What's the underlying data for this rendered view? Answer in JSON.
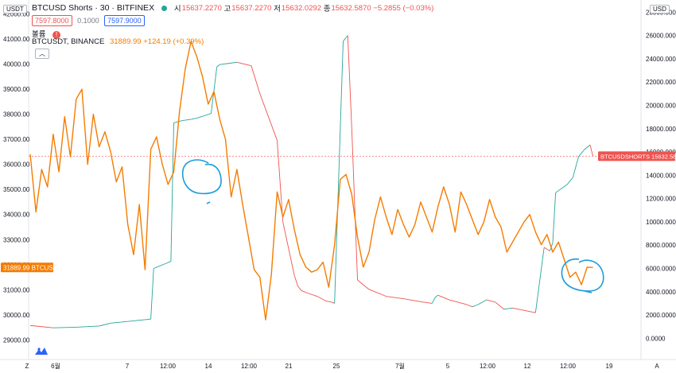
{
  "header": {
    "symbol": "BTCUSD Shorts",
    "interval": "30",
    "exchange": "BITFINEX",
    "open_label": "시",
    "open": "15637.2270",
    "high_label": "고",
    "high": "15637.2270",
    "low_label": "저",
    "low": "15632.0292",
    "close_label": "종",
    "close": "15632.5870",
    "change": "−5.2855 (−0.03%)",
    "bid": "7597.8000",
    "spread": "0.1000",
    "ask": "7597.9000"
  },
  "legend": {
    "volume_label": "볼륨",
    "warn_icon": "!",
    "overlay_name": "BTCUSDT, BINANCE",
    "overlay_value": "31889.99 +124.19 (+0.39%)",
    "collapse_icon": "chevron-up-icon"
  },
  "currency_left": "USDT",
  "currency_right": "USD",
  "colors": {
    "overlay": "#f57c00",
    "shorts_up": "#26a69a",
    "shorts_down": "#ef5350",
    "annotation": "#1e9bd7",
    "axis_text": "#131722",
    "label_bg_left": "#f57c00",
    "label_bg_right": "#ef5350"
  },
  "chart_data": {
    "type": "line",
    "title": "BTCUSD Shorts, 30, BITFINEX",
    "x_tick_labels": [
      "Z",
      "6월",
      "7",
      "12:00",
      "14",
      "12:00",
      "21",
      "25",
      "7월",
      "5",
      "12:00",
      "12",
      "12:00",
      "19",
      "A"
    ],
    "left_axis": {
      "unit": "USDT",
      "ticks": [
        29000,
        30000,
        31000,
        32000,
        33000,
        34000,
        35000,
        36000,
        37000,
        38000,
        39000,
        40000,
        41000,
        42000
      ],
      "tick_labels": [
        "29000.00",
        "30000.00",
        "31000.00",
        "32000.00",
        "33000.00",
        "34000.00",
        "35000.00",
        "36000.00",
        "37000.00",
        "38000.00",
        "39000.00",
        "40000.00",
        "41000.00",
        "42000.00"
      ],
      "range": [
        28600,
        42300
      ],
      "last_label": "31889.99",
      "last_value": 31889.99,
      "last_name": "BTCUSDT"
    },
    "right_axis": {
      "unit": "USD",
      "ticks": [
        0,
        2000,
        4000,
        6000,
        8000,
        10000,
        12000,
        14000,
        16000,
        18000,
        20000,
        22000,
        24000,
        26000,
        28000
      ],
      "tick_labels": [
        "0.0000",
        "2000.0000",
        "4000.0000",
        "6000.0000",
        "8000.0000",
        "10000.0000",
        "12000.0000",
        "14000.0000",
        "16000.0000",
        "18000.0000",
        "20000.0000",
        "22000.0000",
        "24000.0000",
        "26000.0000",
        "28000.0000"
      ],
      "range": [
        -1000,
        28500
      ],
      "last_label": "15632.5870",
      "last_value": 15632.587,
      "last_name": "BTCUSDSHORTS"
    },
    "series": [
      {
        "name": "BTCUSD Shorts",
        "axis": "right",
        "x": [
          0,
          4,
          8,
          12,
          14,
          18,
          21,
          21.5,
          22.5,
          23.5,
          24.5,
          25,
          26.5,
          28,
          29,
          31.5,
          32.5,
          33,
          34.5,
          36,
          38.5,
          40,
          43,
          44,
          46,
          46.6,
          47.2,
          48.2,
          50,
          51.5,
          52.5,
          53,
          53.8,
          54.5,
          55.3,
          56,
          57,
          59,
          62,
          65,
          68.5,
          70,
          70.5,
          71,
          73,
          76,
          77,
          78,
          79.5,
          81,
          82.5,
          84,
          87,
          88,
          89.5,
          90.5,
          91,
          91.5,
          93.5,
          94.5,
          95.5,
          96.5,
          97.5,
          98
        ],
        "values": [
          1100,
          900,
          950,
          1050,
          1300,
          1500,
          1650,
          6000,
          6200,
          6400,
          6600,
          18500,
          18700,
          18800,
          18900,
          19300,
          23300,
          23500,
          23600,
          23700,
          23400,
          21000,
          17000,
          10000,
          5400,
          4500,
          4100,
          3900,
          3600,
          3200,
          3100,
          3000,
          15000,
          25500,
          26000,
          18000,
          5000,
          4200,
          3600,
          3400,
          3100,
          3000,
          3500,
          3700,
          3300,
          2900,
          2700,
          2900,
          3300,
          3100,
          2500,
          2600,
          2300,
          2200,
          7800,
          7500,
          8200,
          12500,
          13200,
          13800,
          15600,
          16200,
          16600,
          15650
        ]
      },
      {
        "name": "BTCUSDT, BINANCE",
        "axis": "left",
        "x": [
          0,
          1,
          2,
          3,
          4,
          5,
          6,
          7,
          8,
          9,
          10,
          11,
          12,
          13,
          14,
          15,
          16,
          17,
          18,
          19,
          20,
          21,
          22,
          23,
          24,
          25,
          26,
          27,
          28,
          29,
          30,
          31,
          32,
          33,
          34,
          35,
          36,
          37,
          38,
          39,
          40,
          41,
          42,
          43,
          44,
          45,
          46,
          47,
          48,
          49,
          50,
          51,
          52,
          53,
          54,
          55,
          56,
          57,
          58,
          59,
          60,
          61,
          62,
          63,
          64,
          65,
          66,
          67,
          68,
          69,
          70,
          71,
          72,
          73,
          74,
          75,
          76,
          77,
          78,
          79,
          80,
          81,
          82,
          83,
          84,
          85,
          86,
          87,
          88,
          89,
          90,
          91,
          92,
          93,
          94,
          95,
          96,
          97,
          98
        ],
        "values": [
          36400,
          34100,
          35800,
          35100,
          37200,
          35700,
          37900,
          36300,
          38600,
          39000,
          36000,
          38000,
          36700,
          37300,
          36500,
          35300,
          35900,
          33600,
          32400,
          34400,
          31800,
          36600,
          37100,
          36000,
          35200,
          35700,
          38100,
          39800,
          40900,
          40300,
          39500,
          38400,
          38900,
          37800,
          37000,
          34700,
          35800,
          34400,
          33100,
          31800,
          31500,
          29800,
          31600,
          34900,
          33900,
          34600,
          33400,
          32400,
          31900,
          31700,
          31800,
          32100,
          31100,
          32800,
          35400,
          35600,
          34800,
          33100,
          31900,
          32500,
          33800,
          34700,
          33900,
          33200,
          34200,
          33600,
          33100,
          33600,
          34500,
          33900,
          33300,
          34300,
          35100,
          34400,
          33300,
          34900,
          34400,
          33800,
          33200,
          33700,
          34600,
          33900,
          33500,
          32500,
          32900,
          33300,
          33700,
          34000,
          33300,
          32800,
          33200,
          32500,
          32900,
          32200,
          31500,
          31700,
          31200,
          31900,
          31890
        ]
      }
    ],
    "annotations": [
      "circle",
      "circle"
    ],
    "grid": false,
    "reference_line": 15632.587
  }
}
